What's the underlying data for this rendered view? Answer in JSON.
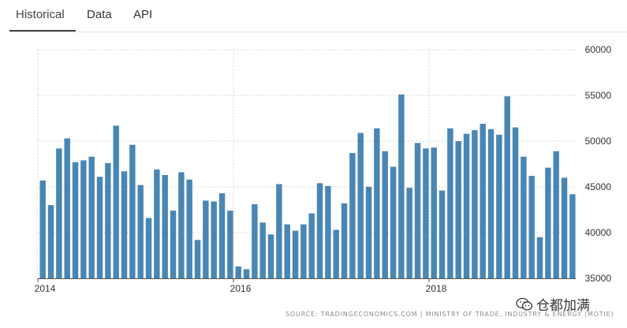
{
  "tabs": [
    {
      "label": "Historical"
    },
    {
      "label": "Data"
    },
    {
      "label": "API"
    }
  ],
  "colors": {
    "bar": "#4a86b4",
    "grid": "#d8d8d8",
    "axis_text": "#333333"
  },
  "chart_data": {
    "type": "bar",
    "title": "",
    "xlabel": "",
    "ylabel": "",
    "ylim": [
      35000,
      60000
    ],
    "yticks": [
      35000,
      40000,
      45000,
      50000,
      55000,
      60000
    ],
    "y_axis_position": "right",
    "x_tick_labels": [
      {
        "label": "2014",
        "index": 0
      },
      {
        "label": "2016",
        "index": 24
      },
      {
        "label": "2018",
        "index": 48
      }
    ],
    "grid": true,
    "frequency": "monthly",
    "x_start": "2014-01",
    "values": [
      45700,
      43000,
      49200,
      50300,
      47700,
      47900,
      48300,
      46100,
      47600,
      51700,
      46700,
      49600,
      45200,
      41600,
      46900,
      46300,
      42400,
      46600,
      45800,
      39200,
      43500,
      43400,
      44300,
      42400,
      36300,
      36000,
      43100,
      41100,
      39800,
      45300,
      40900,
      40200,
      40900,
      42100,
      45400,
      45100,
      40300,
      43200,
      48700,
      50900,
      45000,
      51400,
      48900,
      47200,
      55100,
      44900,
      49800,
      49200,
      49300,
      44600,
      51400,
      50000,
      50800,
      51200,
      51900,
      51300,
      50700,
      54900,
      51500,
      48300,
      46200,
      39500,
      47100,
      48900,
      46000,
      44200
    ]
  },
  "source_text": "SOURCE: TRADINGECONOMICS.COM | MINISTRY OF TRADE, INDUSTRY & ENERGY (MOTIE)",
  "watermark_text": "仓都加满"
}
